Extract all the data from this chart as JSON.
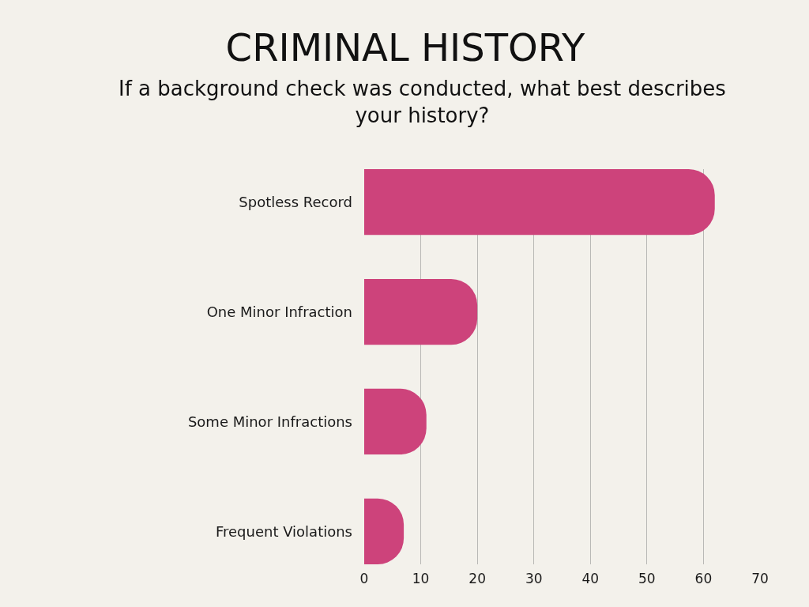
{
  "chart_data": {
    "type": "bar",
    "orientation": "horizontal",
    "title": "CRIMINAL HISTORY",
    "subtitle": "If a background check was conducted, what best describes your history?",
    "categories": [
      "Spotless Record",
      "One Minor Infraction",
      "Some Minor Infractions",
      "Frequent Violations"
    ],
    "values": [
      62,
      20,
      11,
      7
    ],
    "color": "#cd437b",
    "xlim": [
      0,
      70
    ],
    "xticks": [
      0,
      10,
      20,
      30,
      40,
      50,
      60,
      70
    ],
    "grid": "x",
    "legend": false
  }
}
